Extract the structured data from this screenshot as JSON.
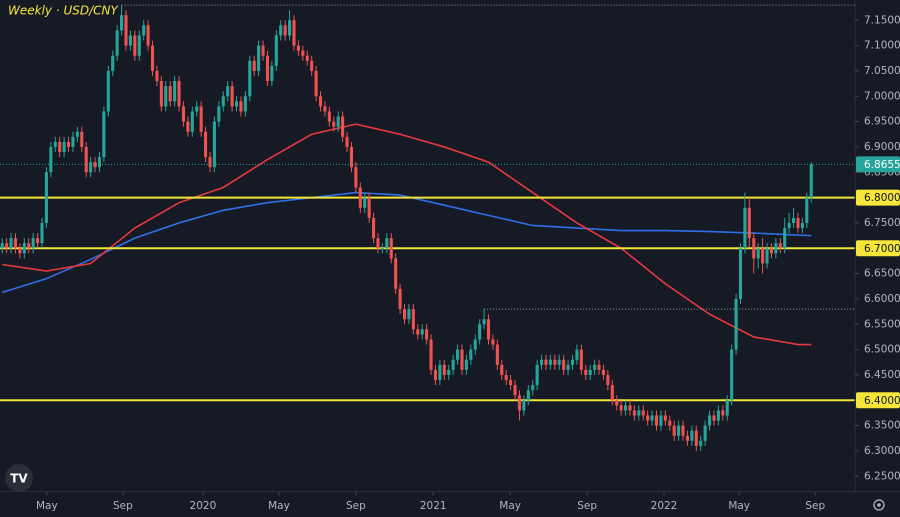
{
  "chart_data": {
    "type": "candlestick",
    "title": "Weekly · USD/CNY",
    "up_color": "#26a69a",
    "down_color": "#ef5350",
    "open": [
      6.7,
      6.71,
      6.7,
      6.72,
      6.7,
      6.69,
      6.71,
      6.7,
      6.72,
      6.71,
      6.75,
      6.85,
      6.9,
      6.91,
      6.89,
      6.91,
      6.9,
      6.92,
      6.93,
      6.9,
      6.85,
      6.87,
      6.86,
      6.88,
      6.97,
      7.05,
      7.08,
      7.13,
      7.16,
      7.1,
      7.12,
      7.08,
      7.12,
      7.14,
      7.1,
      7.05,
      7.03,
      6.98,
      7.02,
      6.99,
      7.03,
      6.98,
      6.95,
      6.93,
      6.97,
      6.98,
      6.93,
      6.88,
      6.86,
      6.95,
      6.98,
      7.0,
      7.02,
      6.98,
      6.99,
      6.97,
      7.0,
      7.07,
      7.05,
      7.1,
      7.08,
      7.03,
      7.06,
      7.12,
      7.14,
      7.12,
      7.15,
      7.1,
      7.09,
      7.08,
      7.07,
      7.05,
      7.0,
      6.98,
      6.97,
      6.95,
      6.94,
      6.96,
      6.92,
      6.9,
      6.86,
      6.82,
      6.78,
      6.8,
      6.76,
      6.72,
      6.7,
      6.7,
      6.72,
      6.68,
      6.62,
      6.58,
      6.56,
      6.58,
      6.54,
      6.53,
      6.54,
      6.52,
      6.46,
      6.44,
      6.47,
      6.45,
      6.46,
      6.48,
      6.5,
      6.46,
      6.48,
      6.5,
      6.52,
      6.55,
      6.56,
      6.52,
      6.51,
      6.47,
      6.45,
      6.44,
      6.43,
      6.41,
      6.38,
      6.4,
      6.42,
      6.43,
      6.47,
      6.48,
      6.47,
      6.48,
      6.47,
      6.48,
      6.46,
      6.47,
      6.48,
      6.5,
      6.46,
      6.45,
      6.46,
      6.47,
      6.46,
      6.45,
      6.43,
      6.4,
      6.39,
      6.38,
      6.39,
      6.38,
      6.37,
      6.38,
      6.37,
      6.36,
      6.37,
      6.35,
      6.37,
      6.36,
      6.35,
      6.33,
      6.35,
      6.33,
      6.32,
      6.34,
      6.31,
      6.32,
      6.35,
      6.37,
      6.36,
      6.38,
      6.37,
      6.4,
      6.5,
      6.6,
      6.7,
      6.78,
      6.72,
      6.68,
      6.7,
      6.67,
      6.7,
      6.69,
      6.71,
      6.7,
      6.74,
      6.75,
      6.76,
      6.74,
      6.75,
      6.8
    ],
    "high": [
      6.72,
      6.72,
      6.73,
      6.73,
      6.71,
      6.72,
      6.72,
      6.73,
      6.73,
      6.76,
      6.86,
      6.91,
      6.92,
      6.92,
      6.92,
      6.92,
      6.93,
      6.94,
      6.94,
      6.91,
      6.88,
      6.88,
      6.89,
      6.98,
      7.06,
      7.09,
      7.14,
      7.18,
      7.17,
      7.13,
      7.13,
      7.13,
      7.15,
      7.15,
      7.11,
      7.06,
      7.04,
      7.03,
      7.03,
      7.04,
      7.04,
      6.99,
      6.96,
      6.98,
      6.99,
      6.99,
      6.94,
      6.89,
      6.96,
      6.99,
      7.01,
      7.03,
      7.03,
      7.0,
      7.0,
      7.01,
      7.08,
      7.08,
      7.11,
      7.11,
      7.09,
      7.07,
      7.13,
      7.15,
      7.15,
      7.17,
      7.16,
      7.11,
      7.1,
      7.09,
      7.08,
      7.06,
      7.01,
      6.99,
      6.98,
      6.96,
      6.97,
      6.97,
      6.93,
      6.91,
      6.87,
      6.83,
      6.81,
      6.81,
      6.77,
      6.73,
      6.71,
      6.73,
      6.73,
      6.69,
      6.63,
      6.59,
      6.59,
      6.59,
      6.55,
      6.55,
      6.55,
      6.53,
      6.47,
      6.48,
      6.48,
      6.47,
      6.49,
      6.51,
      6.51,
      6.49,
      6.51,
      6.53,
      6.56,
      6.58,
      6.57,
      6.53,
      6.52,
      6.48,
      6.46,
      6.45,
      6.44,
      6.42,
      6.41,
      6.43,
      6.44,
      6.48,
      6.49,
      6.49,
      6.49,
      6.49,
      6.49,
      6.49,
      6.48,
      6.49,
      6.51,
      6.51,
      6.47,
      6.47,
      6.48,
      6.48,
      6.47,
      6.46,
      6.44,
      6.41,
      6.4,
      6.4,
      6.4,
      6.39,
      6.39,
      6.39,
      6.38,
      6.38,
      6.38,
      6.38,
      6.38,
      6.37,
      6.36,
      6.36,
      6.36,
      6.34,
      6.35,
      6.35,
      6.33,
      6.36,
      6.38,
      6.38,
      6.39,
      6.39,
      6.41,
      6.51,
      6.61,
      6.71,
      6.81,
      6.8,
      6.73,
      6.71,
      6.72,
      6.71,
      6.71,
      6.72,
      6.72,
      6.76,
      6.77,
      6.78,
      6.77,
      6.76,
      6.81,
      6.87
    ],
    "low": [
      6.69,
      6.69,
      6.69,
      6.69,
      6.68,
      6.68,
      6.69,
      6.69,
      6.7,
      6.7,
      6.74,
      6.84,
      6.89,
      6.88,
      6.88,
      6.89,
      6.89,
      6.91,
      6.89,
      6.84,
      6.84,
      6.85,
      6.85,
      6.87,
      6.96,
      7.04,
      7.07,
      7.12,
      7.09,
      7.09,
      7.07,
      7.07,
      7.11,
      7.09,
      7.04,
      7.02,
      6.97,
      6.97,
      6.98,
      6.98,
      6.97,
      6.94,
      6.92,
      6.92,
      6.96,
      6.92,
      6.87,
      6.85,
      6.85,
      6.94,
      6.97,
      6.99,
      6.97,
      6.97,
      6.96,
      6.96,
      6.99,
      7.04,
      7.04,
      7.07,
      7.02,
      7.02,
      7.05,
      7.11,
      7.11,
      7.11,
      7.09,
      7.08,
      7.07,
      7.06,
      7.04,
      6.99,
      6.97,
      6.96,
      6.94,
      6.93,
      6.93,
      6.91,
      6.89,
      6.85,
      6.81,
      6.77,
      6.77,
      6.75,
      6.71,
      6.69,
      6.69,
      6.69,
      6.67,
      6.61,
      6.57,
      6.55,
      6.55,
      6.53,
      6.52,
      6.52,
      6.51,
      6.45,
      6.43,
      6.43,
      6.44,
      6.44,
      6.45,
      6.47,
      6.45,
      6.45,
      6.47,
      6.49,
      6.51,
      6.54,
      6.51,
      6.5,
      6.46,
      6.44,
      6.43,
      6.42,
      6.4,
      6.36,
      6.37,
      6.39,
      6.41,
      6.42,
      6.46,
      6.46,
      6.46,
      6.46,
      6.46,
      6.45,
      6.45,
      6.46,
      6.47,
      6.45,
      6.44,
      6.44,
      6.45,
      6.45,
      6.44,
      6.42,
      6.39,
      6.38,
      6.37,
      6.37,
      6.37,
      6.36,
      6.36,
      6.36,
      6.35,
      6.35,
      6.34,
      6.34,
      6.35,
      6.34,
      6.32,
      6.32,
      6.32,
      6.31,
      6.31,
      6.3,
      6.3,
      6.31,
      6.34,
      6.35,
      6.35,
      6.36,
      6.36,
      6.39,
      6.49,
      6.59,
      6.69,
      6.7,
      6.65,
      6.66,
      6.65,
      6.66,
      6.68,
      6.68,
      6.69,
      6.69,
      6.73,
      6.74,
      6.73,
      6.73,
      6.74,
      6.79
    ],
    "close": [
      6.71,
      6.7,
      6.72,
      6.7,
      6.69,
      6.71,
      6.7,
      6.72,
      6.71,
      6.75,
      6.85,
      6.9,
      6.91,
      6.89,
      6.91,
      6.9,
      6.92,
      6.93,
      6.9,
      6.85,
      6.87,
      6.86,
      6.88,
      6.97,
      7.05,
      7.08,
      7.13,
      7.16,
      7.1,
      7.12,
      7.08,
      7.12,
      7.14,
      7.1,
      7.05,
      7.03,
      6.98,
      7.02,
      6.99,
      7.03,
      6.98,
      6.95,
      6.93,
      6.97,
      6.98,
      6.93,
      6.88,
      6.86,
      6.95,
      6.98,
      7.0,
      7.02,
      6.98,
      6.99,
      6.97,
      7.0,
      7.07,
      7.05,
      7.1,
      7.08,
      7.03,
      7.06,
      7.12,
      7.14,
      7.12,
      7.15,
      7.1,
      7.09,
      7.08,
      7.07,
      7.05,
      7.0,
      6.98,
      6.97,
      6.95,
      6.94,
      6.96,
      6.92,
      6.9,
      6.86,
      6.82,
      6.78,
      6.8,
      6.76,
      6.72,
      6.7,
      6.7,
      6.72,
      6.68,
      6.62,
      6.58,
      6.56,
      6.58,
      6.54,
      6.53,
      6.54,
      6.52,
      6.46,
      6.44,
      6.47,
      6.45,
      6.46,
      6.48,
      6.5,
      6.46,
      6.48,
      6.5,
      6.52,
      6.55,
      6.56,
      6.52,
      6.51,
      6.47,
      6.45,
      6.44,
      6.43,
      6.41,
      6.38,
      6.4,
      6.42,
      6.43,
      6.47,
      6.48,
      6.47,
      6.48,
      6.47,
      6.48,
      6.46,
      6.47,
      6.48,
      6.5,
      6.46,
      6.45,
      6.46,
      6.47,
      6.46,
      6.45,
      6.43,
      6.4,
      6.39,
      6.38,
      6.39,
      6.38,
      6.37,
      6.38,
      6.37,
      6.36,
      6.37,
      6.35,
      6.37,
      6.36,
      6.35,
      6.33,
      6.35,
      6.33,
      6.32,
      6.34,
      6.31,
      6.32,
      6.35,
      6.37,
      6.36,
      6.38,
      6.37,
      6.4,
      6.5,
      6.6,
      6.7,
      6.78,
      6.72,
      6.68,
      6.7,
      6.67,
      6.7,
      6.69,
      6.71,
      6.7,
      6.74,
      6.75,
      6.76,
      6.74,
      6.75,
      6.8,
      6.8655
    ],
    "lines": [
      {
        "color": "#2f6fe8",
        "x": [
          0,
          10,
          20,
          30,
          40,
          50,
          60,
          70,
          80,
          90,
          100,
          110,
          120,
          130,
          140,
          150,
          160,
          170,
          180,
          183
        ],
        "values": [
          6.613,
          6.64,
          6.678,
          6.72,
          6.75,
          6.775,
          6.79,
          6.8,
          6.81,
          6.805,
          6.785,
          6.765,
          6.745,
          6.74,
          6.735,
          6.735,
          6.733,
          6.73,
          6.726,
          6.725
        ]
      },
      {
        "color": "#e8383d",
        "x": [
          0,
          10,
          20,
          30,
          40,
          50,
          60,
          70,
          80,
          90,
          100,
          110,
          120,
          130,
          140,
          150,
          160,
          170,
          180,
          183
        ],
        "values": [
          6.668,
          6.655,
          6.67,
          6.74,
          6.79,
          6.82,
          6.875,
          6.925,
          6.945,
          6.925,
          6.9,
          6.87,
          6.81,
          6.75,
          6.7,
          6.63,
          6.57,
          6.525,
          6.51,
          6.51
        ]
      }
    ],
    "levels": [
      {
        "value": 6.8,
        "label": "6.8000"
      },
      {
        "value": 6.7,
        "label": "6.7000"
      },
      {
        "value": 6.4,
        "label": "6.4000"
      }
    ],
    "level_color": "#f5e639",
    "reference_lines": [
      {
        "value": 7.18,
        "from": 27
      },
      {
        "value": 6.58,
        "from": 109
      }
    ],
    "xlim": [
      -0.5,
      192.9
    ],
    "xticks": [
      {
        "value": 10.1,
        "label": "May"
      },
      {
        "value": 27.3,
        "label": "Sep"
      },
      {
        "value": 45.4,
        "label": "2020"
      },
      {
        "value": 62.6,
        "label": "May"
      },
      {
        "value": 80.0,
        "label": "Sep"
      },
      {
        "value": 97.5,
        "label": "2021"
      },
      {
        "value": 114.9,
        "label": "May"
      },
      {
        "value": 132.3,
        "label": "Sep"
      },
      {
        "value": 149.7,
        "label": "2022"
      },
      {
        "value": 166.7,
        "label": "May"
      },
      {
        "value": 183.9,
        "label": "Sep"
      }
    ],
    "ylim": [
      6.22,
      7.19
    ],
    "yticks": [
      {
        "value": 6.25,
        "label": "6.2500"
      },
      {
        "value": 6.3,
        "label": "6.3000"
      },
      {
        "value": 6.35,
        "label": "6.3500"
      },
      {
        "value": 6.4,
        "label": "6.4000"
      },
      {
        "value": 6.45,
        "label": "6.4500"
      },
      {
        "value": 6.5,
        "label": "6.5000"
      },
      {
        "value": 6.55,
        "label": "6.5500"
      },
      {
        "value": 6.6,
        "label": "6.6000"
      },
      {
        "value": 6.65,
        "label": "6.6500"
      },
      {
        "value": 6.7,
        "label": "6.7000"
      },
      {
        "value": 6.75,
        "label": "6.7500"
      },
      {
        "value": 6.8,
        "label": "6.8000"
      },
      {
        "value": 6.85,
        "label": "6.8500"
      },
      {
        "value": 6.9,
        "label": "6.9000"
      },
      {
        "value": 6.95,
        "label": "6.9500"
      },
      {
        "value": 7.0,
        "label": "7.0000"
      },
      {
        "value": 7.05,
        "label": "7.0500"
      },
      {
        "value": 7.1,
        "label": "7.1000"
      },
      {
        "value": 7.15,
        "label": "7.1500"
      }
    ],
    "grid": false
  }
}
